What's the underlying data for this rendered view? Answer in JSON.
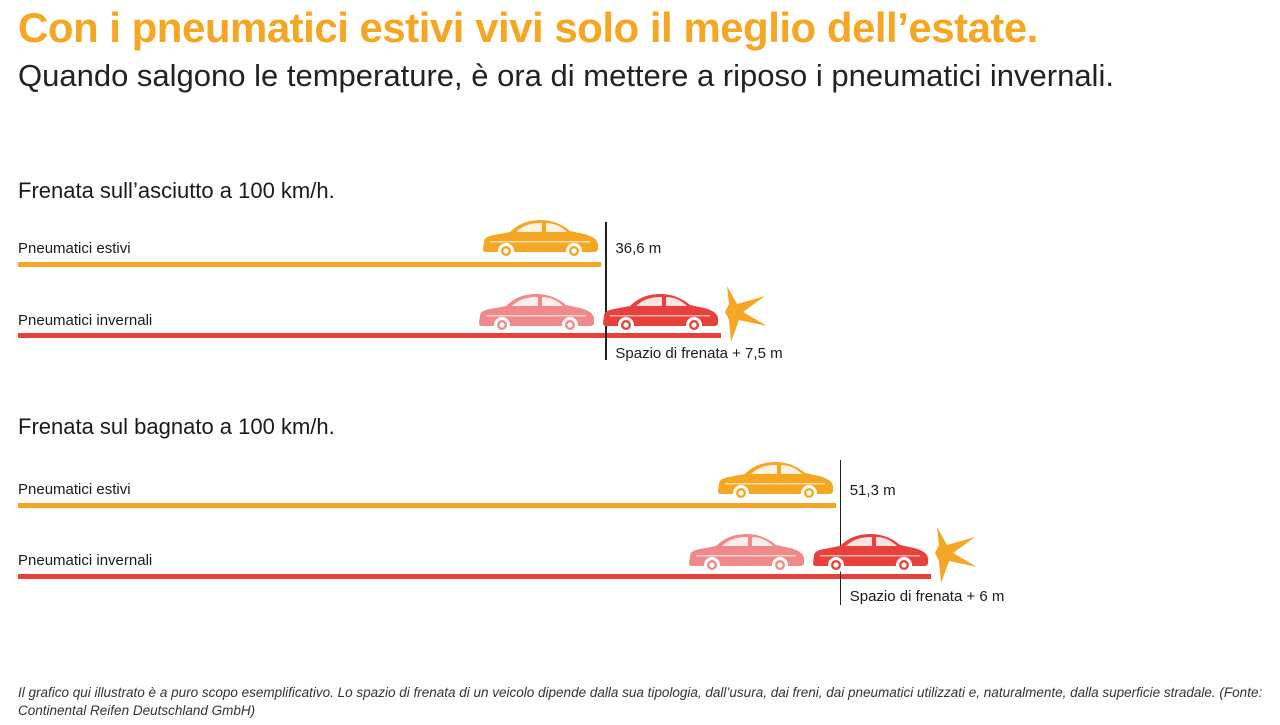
{
  "header": {
    "title": "Con i pneumatici estivi vivi solo il meglio dell’estate.",
    "subtitle": "Quando salgono le temperature, è ora di mettere a riposo i pneumatici invernali."
  },
  "colors": {
    "summer": "#f5a623",
    "winter_dark": "#e8403a",
    "winter_light": "#f08a8a",
    "burst": "#f5a623"
  },
  "chart_data": [
    {
      "type": "bar",
      "title": "Frenata sull’asciutto a 100 km/h.",
      "categories": [
        "Pneumatici estivi",
        "Pneumatici invernali"
      ],
      "values": [
        36.6,
        44.1
      ],
      "unit": "m",
      "annotations": {
        "summer_distance": "36,6 m",
        "extra_distance": "Spazio di frenata + 7,5 m"
      }
    },
    {
      "type": "bar",
      "title": "Frenata sul bagnato a 100 km/h.",
      "categories": [
        "Pneumatici estivi",
        "Pneumatici invernali"
      ],
      "values": [
        51.3,
        57.3
      ],
      "unit": "m",
      "annotations": {
        "summer_distance": "51,3 m",
        "extra_distance": "Spazio di frenata + 6 m"
      }
    }
  ],
  "footnote": "Il grafico qui illustrato è a puro scopo esemplificativo. Lo spazio di frenata di un veicolo dipende dalla sua tipologia, dall’usura, dai freni, dai pneumatici utilizzati e, naturalmente, dalla superficie stradale. (Fonte: Continental Reifen Deutschland GmbH)"
}
